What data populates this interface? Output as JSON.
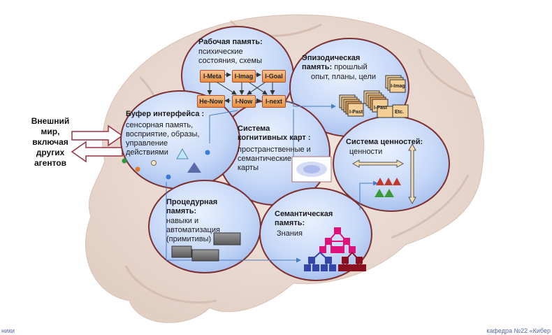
{
  "external": {
    "text": "Внешний\nмир,\nвключая\nдругих\nагентов"
  },
  "working_memory": {
    "title": "Рабочая память:",
    "body": "психические\nсостояния, схемы"
  },
  "episodic": {
    "title": "Эпизодическая\nпамять:",
    "body_first": " прошлый",
    "body_rest": "опыт, планы,  цели"
  },
  "buffer": {
    "title": "Буфер интерфейса :",
    "body": "сенсорная память,\nвосприятие, образы,\nуправление\nдействиями"
  },
  "cognitive": {
    "title": "Система\nкогнитивных карт :",
    "body": "пространственные и\nсемантические\nкарты"
  },
  "values": {
    "title": "Система ценностей:",
    "body": "ценности"
  },
  "procedural": {
    "title": "Процедурная\nпамять:",
    "body": "навыки и\nавтоматизация\n(примитивы)"
  },
  "semantic": {
    "title": "Семантическая\nпамять:",
    "body": "Знания"
  },
  "wm_nodes": [
    "I-Meta",
    "I-Imag",
    "I-Goal",
    "He-Now",
    "I-Now",
    "I-next"
  ],
  "ep_cards": {
    "stack1": "I-Past",
    "stack2": "I-Past",
    "stack3": "I-Imag",
    "etc": "Etc."
  },
  "footer": {
    "left": "ники",
    "right": "кафедра №22 «Кибер"
  },
  "colors": {
    "ellipse_border": "#7e2f2f",
    "node_fill": "#e78f40",
    "semantic_top": "#e0127a",
    "semantic_left": "#3344aa",
    "semantic_right": "#8a1020",
    "tri_red": "#c0392b",
    "tri_green": "#3a9a3a"
  }
}
